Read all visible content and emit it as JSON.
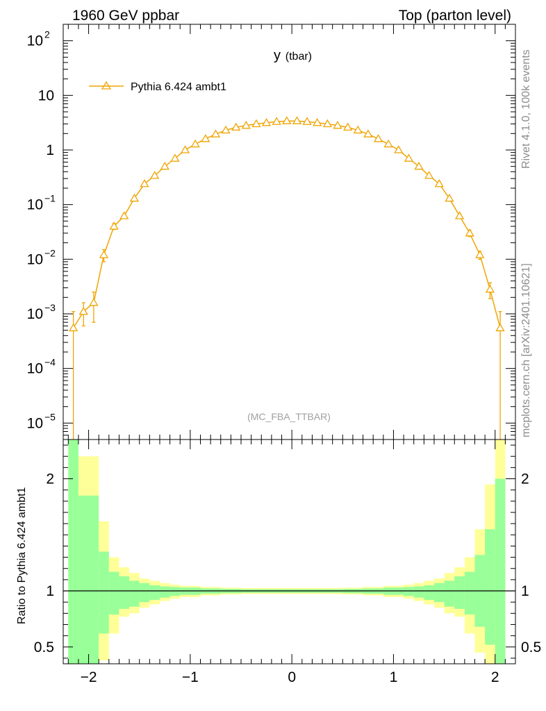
{
  "header": {
    "left": "1960 GeV ppbar",
    "right": "Top (parton level)"
  },
  "side_labels": {
    "version": "Rivet 4.1.0,  100k events",
    "source": "mcplots.cern.ch [arXiv:2401.10621]"
  },
  "plot": {
    "title_main": "y",
    "title_sub": "(tbar)",
    "analysis_tag": "(MC_FBA_TTBAR)",
    "ratio_ylabel": "Ratio to Pythia 6.424 ambt1"
  },
  "colors": {
    "series": "#f0a400",
    "band_inner": "#99ff99",
    "band_outer": "#ffff99"
  },
  "chart_data": [
    {
      "type": "line",
      "title": "y (tbar)",
      "xlabel": "",
      "ylabel": "",
      "yscale": "log",
      "xlim": [
        -2.25,
        2.2
      ],
      "ylim": [
        5e-06,
        200
      ],
      "legend_position": "top-left",
      "yticks": [
        {
          "value": 1e-05,
          "base": "10",
          "exp": "−5"
        },
        {
          "value": 0.0001,
          "base": "10",
          "exp": "−4"
        },
        {
          "value": 0.001,
          "base": "10",
          "exp": "−3"
        },
        {
          "value": 0.01,
          "base": "10",
          "exp": "−2"
        },
        {
          "value": 0.1,
          "base": "10",
          "exp": "−1"
        },
        {
          "value": 1,
          "base": "1",
          "exp": ""
        },
        {
          "value": 10,
          "base": "10",
          "exp": ""
        },
        {
          "value": 100,
          "base": "10",
          "exp": "2"
        }
      ],
      "series": [
        {
          "name": "Pythia 6.424 ambt1",
          "marker": "open-triangle",
          "x": [
            -2.15,
            -2.05,
            -1.95,
            -1.85,
            -1.75,
            -1.65,
            -1.55,
            -1.45,
            -1.35,
            -1.25,
            -1.15,
            -1.05,
            -0.95,
            -0.85,
            -0.75,
            -0.65,
            -0.55,
            -0.45,
            -0.35,
            -0.25,
            -0.15,
            -0.05,
            0.05,
            0.15,
            0.25,
            0.35,
            0.45,
            0.55,
            0.65,
            0.75,
            0.85,
            0.95,
            1.05,
            1.15,
            1.25,
            1.35,
            1.45,
            1.55,
            1.65,
            1.75,
            1.85,
            1.95,
            2.05
          ],
          "y": [
            0.00055,
            0.0011,
            0.0016,
            0.012,
            0.04,
            0.062,
            0.13,
            0.24,
            0.34,
            0.5,
            0.7,
            1.0,
            1.28,
            1.6,
            1.95,
            2.3,
            2.6,
            2.8,
            3.0,
            3.15,
            3.3,
            3.4,
            3.4,
            3.3,
            3.15,
            3.0,
            2.8,
            2.6,
            2.3,
            1.95,
            1.6,
            1.28,
            1.0,
            0.7,
            0.5,
            0.34,
            0.24,
            0.13,
            0.062,
            0.03,
            0.012,
            0.0028,
            0.00055
          ],
          "y_err": [
            0.00055,
            0.0005,
            0.0009,
            0.003,
            0.005,
            0.006,
            0.01,
            0.012,
            0.015,
            0.02,
            0.025,
            0.03,
            0.03,
            0.03,
            0.03,
            0.03,
            0.03,
            0.03,
            0.03,
            0.03,
            0.03,
            0.03,
            0.03,
            0.03,
            0.03,
            0.03,
            0.03,
            0.03,
            0.03,
            0.03,
            0.03,
            0.03,
            0.03,
            0.025,
            0.02,
            0.015,
            0.012,
            0.01,
            0.006,
            0.004,
            0.002,
            0.0009,
            0.00055
          ]
        }
      ]
    },
    {
      "type": "area",
      "title": "",
      "xlabel": "",
      "ylabel": "Ratio to Pythia 6.424 ambt1",
      "xlim": [
        -2.25,
        2.2
      ],
      "ylim": [
        0.35,
        2.35
      ],
      "xticks": [
        {
          "value": -2,
          "label": "−2"
        },
        {
          "value": -1,
          "label": "−1"
        },
        {
          "value": 0,
          "label": "0"
        },
        {
          "value": 1,
          "label": "1"
        },
        {
          "value": 2,
          "label": "2"
        }
      ],
      "yticks": [
        {
          "value": 0.5,
          "label": "0.5"
        },
        {
          "value": 1,
          "label": "1"
        },
        {
          "value": 2,
          "label": "2"
        }
      ],
      "reference_line": 1,
      "bands": [
        {
          "x0": -2.2,
          "x1": -2.1,
          "inner_lo": 0.35,
          "inner_hi": 2.35,
          "outer_lo": 0.35,
          "outer_hi": 2.35
        },
        {
          "x0": -2.1,
          "x1": -1.9,
          "inner_lo": 0.35,
          "inner_hi": 1.85,
          "outer_lo": 0.35,
          "outer_hi": 2.2
        },
        {
          "x0": -1.9,
          "x1": -1.8,
          "inner_lo": 0.62,
          "inner_hi": 1.35,
          "outer_lo": 0.38,
          "outer_hi": 1.62
        },
        {
          "x0": -1.8,
          "x1": -1.7,
          "inner_lo": 0.79,
          "inner_hi": 1.17,
          "outer_lo": 0.62,
          "outer_hi": 1.3
        },
        {
          "x0": -1.7,
          "x1": -1.6,
          "inner_lo": 0.84,
          "inner_hi": 1.13,
          "outer_lo": 0.77,
          "outer_hi": 1.21
        },
        {
          "x0": -1.6,
          "x1": -1.5,
          "inner_lo": 0.86,
          "inner_hi": 1.09,
          "outer_lo": 0.8,
          "outer_hi": 1.16
        },
        {
          "x0": -1.5,
          "x1": -1.4,
          "inner_lo": 0.9,
          "inner_hi": 1.07,
          "outer_lo": 0.85,
          "outer_hi": 1.11
        },
        {
          "x0": -1.4,
          "x1": -1.3,
          "inner_lo": 0.92,
          "inner_hi": 1.05,
          "outer_lo": 0.88,
          "outer_hi": 1.09
        },
        {
          "x0": -1.3,
          "x1": -1.2,
          "inner_lo": 0.94,
          "inner_hi": 1.04,
          "outer_lo": 0.91,
          "outer_hi": 1.07
        },
        {
          "x0": -1.2,
          "x1": -1.1,
          "inner_lo": 0.955,
          "inner_hi": 1.035,
          "outer_lo": 0.93,
          "outer_hi": 1.055
        },
        {
          "x0": -1.1,
          "x1": -0.9,
          "inner_lo": 0.965,
          "inner_hi": 1.03,
          "outer_lo": 0.945,
          "outer_hi": 1.045
        },
        {
          "x0": -0.9,
          "x1": -0.7,
          "inner_lo": 0.975,
          "inner_hi": 1.022,
          "outer_lo": 0.96,
          "outer_hi": 1.035
        },
        {
          "x0": -0.7,
          "x1": -0.5,
          "inner_lo": 0.98,
          "inner_hi": 1.018,
          "outer_lo": 0.968,
          "outer_hi": 1.028
        },
        {
          "x0": -0.5,
          "x1": 0.5,
          "inner_lo": 0.983,
          "inner_hi": 1.015,
          "outer_lo": 0.972,
          "outer_hi": 1.025
        },
        {
          "x0": 0.5,
          "x1": 0.7,
          "inner_lo": 0.98,
          "inner_hi": 1.018,
          "outer_lo": 0.968,
          "outer_hi": 1.028
        },
        {
          "x0": 0.7,
          "x1": 0.9,
          "inner_lo": 0.975,
          "inner_hi": 1.022,
          "outer_lo": 0.96,
          "outer_hi": 1.035
        },
        {
          "x0": 0.9,
          "x1": 1.1,
          "inner_lo": 0.965,
          "inner_hi": 1.03,
          "outer_lo": 0.945,
          "outer_hi": 1.045
        },
        {
          "x0": 1.1,
          "x1": 1.2,
          "inner_lo": 0.955,
          "inner_hi": 1.035,
          "outer_lo": 0.93,
          "outer_hi": 1.055
        },
        {
          "x0": 1.2,
          "x1": 1.3,
          "inner_lo": 0.94,
          "inner_hi": 1.04,
          "outer_lo": 0.91,
          "outer_hi": 1.07
        },
        {
          "x0": 1.3,
          "x1": 1.4,
          "inner_lo": 0.92,
          "inner_hi": 1.05,
          "outer_lo": 0.88,
          "outer_hi": 1.09
        },
        {
          "x0": 1.4,
          "x1": 1.5,
          "inner_lo": 0.9,
          "inner_hi": 1.07,
          "outer_lo": 0.85,
          "outer_hi": 1.11
        },
        {
          "x0": 1.5,
          "x1": 1.6,
          "inner_lo": 0.86,
          "inner_hi": 1.09,
          "outer_lo": 0.8,
          "outer_hi": 1.16
        },
        {
          "x0": 1.6,
          "x1": 1.7,
          "inner_lo": 0.84,
          "inner_hi": 1.13,
          "outer_lo": 0.77,
          "outer_hi": 1.21
        },
        {
          "x0": 1.7,
          "x1": 1.8,
          "inner_lo": 0.79,
          "inner_hi": 1.17,
          "outer_lo": 0.62,
          "outer_hi": 1.3
        },
        {
          "x0": 1.8,
          "x1": 1.9,
          "inner_lo": 0.68,
          "inner_hi": 1.32,
          "outer_lo": 0.45,
          "outer_hi": 1.55
        },
        {
          "x0": 1.9,
          "x1": 2.0,
          "inner_lo": 0.52,
          "inner_hi": 1.55,
          "outer_lo": 0.35,
          "outer_hi": 1.95
        },
        {
          "x0": 2.0,
          "x1": 2.1,
          "inner_lo": 0.35,
          "inner_hi": 2.0,
          "outer_lo": 0.35,
          "outer_hi": 2.35
        }
      ]
    }
  ]
}
